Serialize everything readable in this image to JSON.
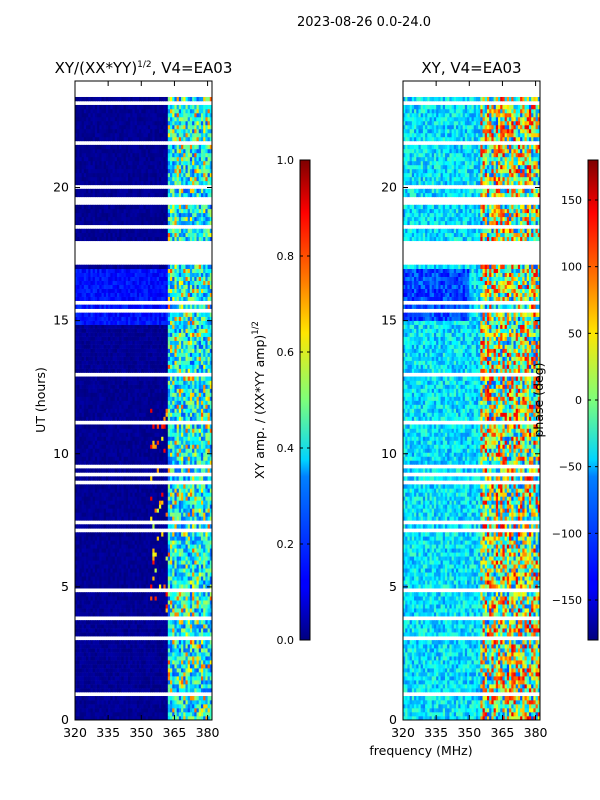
{
  "figure": {
    "suptitle": "2023-08-26 0.0-24.0"
  },
  "chart_data": [
    {
      "type": "heatmap",
      "title": "XY/(XX*YY)^(1/2), V4=EA03",
      "title_main": "XY/(XX*YY)",
      "title_exp": "1/2",
      "title_tail": ", V4=EA03",
      "xlabel": "",
      "shared_xlabel": "frequency (MHz)",
      "ylabel": "UT (hours)",
      "xlim": [
        320,
        382
      ],
      "ylim": [
        0,
        24
      ],
      "xticks": [
        320,
        335,
        350,
        365,
        380
      ],
      "yticks": [
        0,
        5,
        10,
        15,
        20
      ],
      "colormap": "jet",
      "colorbar": {
        "label_main": "XY amp. / (XX*YY amp)",
        "label_exp": "1/2",
        "range": [
          0.0,
          1.0
        ],
        "ticks": [
          "0.0",
          "0.2",
          "0.4",
          "0.6",
          "0.8",
          "1.0"
        ]
      },
      "description": "normalized XY amplitude vs frequency and UT; low (~0) below ~362 MHz, elevated 362-382 MHz; gaps (white) at missing times"
    },
    {
      "type": "heatmap",
      "title": "XY, V4=EA03",
      "xlabel": "",
      "ylabel": "",
      "xlim": [
        320,
        382
      ],
      "ylim": [
        0,
        24
      ],
      "xticks": [
        320,
        335,
        350,
        365,
        380
      ],
      "yticks": [
        0,
        5,
        10,
        15,
        20
      ],
      "colormap": "jet",
      "colorbar": {
        "label": "phase (deg)",
        "range": [
          -180,
          180
        ],
        "ticks": [
          "−150",
          "−100",
          "−50",
          "0",
          "50",
          "100",
          "150"
        ]
      },
      "description": "XY phase vs frequency and UT; mostly blue/cyan with mixed structure above 355 MHz"
    }
  ],
  "colors": {
    "jet_low": "#00007f",
    "jet_high": "#7f0000",
    "gap": "#ffffff",
    "axes": "#000000"
  }
}
